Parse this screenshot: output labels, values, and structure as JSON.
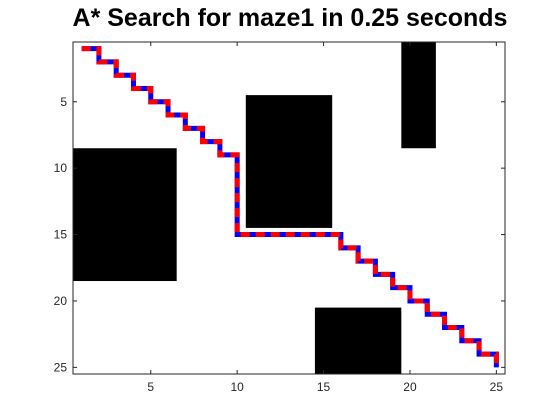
{
  "chart_data": {
    "type": "heatmap",
    "title": "A* Search for maze1 in 0.25 seconds",
    "xlabel": "",
    "ylabel": "",
    "grid_size": [
      25,
      25
    ],
    "x_range": [
      0.5,
      25.5
    ],
    "y_range": [
      0.5,
      25.5
    ],
    "y_axis_direction": "reversed",
    "x_ticks": [
      5,
      10,
      15,
      20,
      25
    ],
    "y_ticks": [
      5,
      10,
      15,
      20,
      25
    ],
    "obstacles": [
      {
        "x_range": [
          1,
          6
        ],
        "y_range": [
          9,
          18
        ]
      },
      {
        "x_range": [
          11,
          15
        ],
        "y_range": [
          5,
          14
        ]
      },
      {
        "x_range": [
          20,
          21
        ],
        "y_range": [
          1,
          8
        ]
      },
      {
        "x_range": [
          15,
          19
        ],
        "y_range": [
          21,
          25
        ]
      }
    ],
    "path": [
      [
        1,
        1
      ],
      [
        2,
        1
      ],
      [
        2,
        2
      ],
      [
        3,
        2
      ],
      [
        3,
        3
      ],
      [
        4,
        3
      ],
      [
        4,
        4
      ],
      [
        5,
        4
      ],
      [
        5,
        5
      ],
      [
        6,
        5
      ],
      [
        6,
        6
      ],
      [
        7,
        6
      ],
      [
        7,
        7
      ],
      [
        8,
        7
      ],
      [
        8,
        8
      ],
      [
        9,
        8
      ],
      [
        9,
        9
      ],
      [
        10,
        9
      ],
      [
        10,
        10
      ],
      [
        10,
        11
      ],
      [
        10,
        12
      ],
      [
        10,
        13
      ],
      [
        10,
        14
      ],
      [
        10,
        15
      ],
      [
        11,
        15
      ],
      [
        12,
        15
      ],
      [
        13,
        15
      ],
      [
        14,
        15
      ],
      [
        15,
        15
      ],
      [
        16,
        15
      ],
      [
        16,
        16
      ],
      [
        17,
        16
      ],
      [
        17,
        17
      ],
      [
        18,
        17
      ],
      [
        18,
        18
      ],
      [
        19,
        18
      ],
      [
        19,
        19
      ],
      [
        20,
        19
      ],
      [
        20,
        20
      ],
      [
        21,
        20
      ],
      [
        21,
        21
      ],
      [
        22,
        21
      ],
      [
        22,
        22
      ],
      [
        23,
        22
      ],
      [
        23,
        23
      ],
      [
        24,
        23
      ],
      [
        24,
        24
      ],
      [
        25,
        24
      ],
      [
        25,
        25
      ]
    ],
    "colors": {
      "background": "#ffffff",
      "obstacle": "#000000",
      "path_primary": "#ff0000",
      "path_secondary": "#0000ff",
      "axis": "#262626"
    }
  }
}
